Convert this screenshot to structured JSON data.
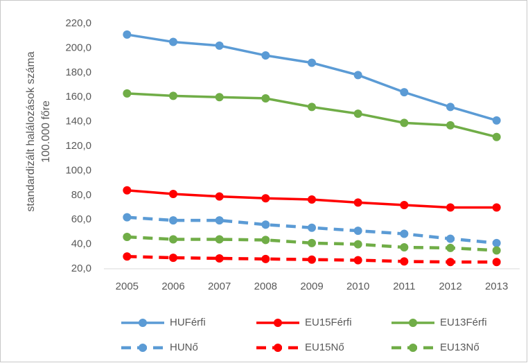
{
  "chart_data": {
    "type": "line",
    "ylabel": [
      "standardizált halálozások száma",
      "100.000 főre"
    ],
    "categories": [
      "2005",
      "2006",
      "2007",
      "2008",
      "2009",
      "2010",
      "2011",
      "2012",
      "2013"
    ],
    "ylim": [
      20,
      220
    ],
    "yticks": [
      {
        "value": 20,
        "label": "20,0"
      },
      {
        "value": 40,
        "label": "40,0"
      },
      {
        "value": 60,
        "label": "60,0"
      },
      {
        "value": 80,
        "label": "80,0"
      },
      {
        "value": 100,
        "label": "100,0"
      },
      {
        "value": 120,
        "label": "120,0"
      },
      {
        "value": 140,
        "label": "140,0"
      },
      {
        "value": 160,
        "label": "160,0"
      },
      {
        "value": 180,
        "label": "180,0"
      },
      {
        "value": 200,
        "label": "200,0"
      },
      {
        "value": 220,
        "label": "220,0"
      }
    ],
    "grid": false,
    "legend": "bottom",
    "series": [
      {
        "name": "HUFérfi",
        "color": "#5b9bd5",
        "dashed": false,
        "values": [
          211,
          205,
          202,
          194,
          188,
          178,
          164,
          152,
          141
        ]
      },
      {
        "name": "EU15Férfi",
        "color": "#ff0000",
        "dashed": false,
        "values": [
          84,
          81,
          79,
          77.5,
          76.5,
          74,
          72,
          70,
          70
        ]
      },
      {
        "name": "EU13Férfi",
        "color": "#70ad47",
        "dashed": false,
        "values": [
          163,
          161,
          160,
          159,
          152,
          146.5,
          139,
          137,
          127.5
        ]
      },
      {
        "name": "HUNő",
        "color": "#5b9bd5",
        "dashed": true,
        "values": [
          62,
          59.5,
          59.5,
          56,
          53.5,
          51,
          48.5,
          44.5,
          41
        ]
      },
      {
        "name": "EU15Nő",
        "color": "#ff0000",
        "dashed": true,
        "values": [
          30,
          29,
          28.5,
          28,
          27.5,
          27,
          26,
          25.5,
          25.5
        ]
      },
      {
        "name": "EU13Nő",
        "color": "#70ad47",
        "dashed": true,
        "values": [
          46,
          44,
          44,
          43.5,
          41,
          40,
          37.5,
          37,
          35
        ]
      }
    ]
  }
}
